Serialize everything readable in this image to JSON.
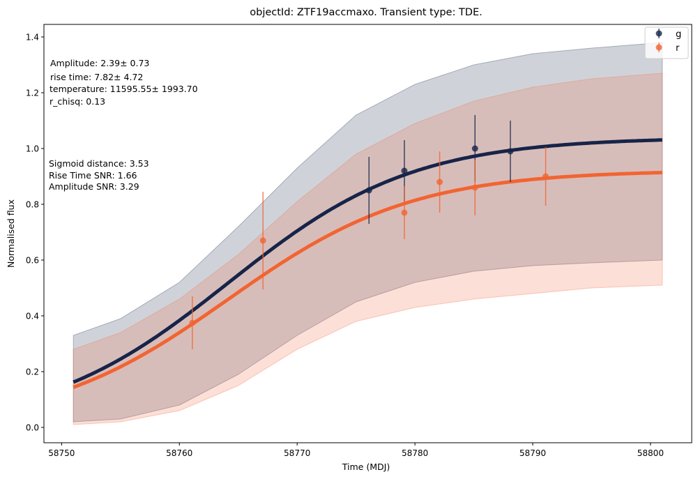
{
  "chart_data": {
    "type": "scatter",
    "title": "objectId: ZTF19accmaxo. Transient type: TDE.",
    "xlabel": "Time (MDJ)",
    "ylabel": "Normalised flux",
    "xlim": [
      58748.5,
      58803.5
    ],
    "ylim": [
      -0.055,
      1.445
    ],
    "xticks": [
      58750,
      58760,
      58770,
      58780,
      58790,
      58800
    ],
    "yticks": [
      0.0,
      0.2,
      0.4,
      0.6,
      0.8,
      1.0,
      1.2,
      1.4
    ],
    "grid": false,
    "legend_position": "top-right",
    "fit": {
      "x_range": [
        58751,
        58801
      ],
      "t0": 58764.2,
      "tau": 7.82
    },
    "series": [
      {
        "name": "g",
        "color": "#172449",
        "fill_color": "#2e3f5c",
        "amplitude": 1.04,
        "points": [
          {
            "x": 58776.1,
            "y": 0.85,
            "err": 0.12
          },
          {
            "x": 58779.1,
            "y": 0.92,
            "err": 0.11
          },
          {
            "x": 58785.1,
            "y": 1.0,
            "err": 0.12
          },
          {
            "x": 58788.1,
            "y": 0.99,
            "err": 0.11
          }
        ],
        "band": {
          "x": [
            58751,
            58755,
            58760,
            58765,
            58770,
            58775,
            58780,
            58785,
            58790,
            58795,
            58801
          ],
          "upper": [
            0.33,
            0.39,
            0.52,
            0.72,
            0.93,
            1.12,
            1.23,
            1.3,
            1.34,
            1.36,
            1.38
          ],
          "lower": [
            0.02,
            0.03,
            0.08,
            0.19,
            0.33,
            0.45,
            0.52,
            0.56,
            0.58,
            0.59,
            0.6
          ]
        }
      },
      {
        "name": "r",
        "color": "#f26432",
        "fill_color": "#f47650",
        "amplitude": 0.922,
        "points": [
          {
            "x": 58761.1,
            "y": 0.375,
            "err": 0.095
          },
          {
            "x": 58767.1,
            "y": 0.67,
            "err": 0.175
          },
          {
            "x": 58779.1,
            "y": 0.77,
            "err": 0.095
          },
          {
            "x": 58782.1,
            "y": 0.88,
            "err": 0.11
          },
          {
            "x": 58785.1,
            "y": 0.86,
            "err": 0.1
          },
          {
            "x": 58791.1,
            "y": 0.9,
            "err": 0.105
          }
        ],
        "band": {
          "x": [
            58751,
            58755,
            58760,
            58765,
            58770,
            58775,
            58780,
            58785,
            58790,
            58795,
            58801
          ],
          "upper": [
            0.28,
            0.34,
            0.46,
            0.62,
            0.81,
            0.98,
            1.09,
            1.17,
            1.22,
            1.25,
            1.27
          ],
          "lower": [
            0.01,
            0.02,
            0.06,
            0.15,
            0.28,
            0.38,
            0.43,
            0.46,
            0.48,
            0.5,
            0.51
          ]
        }
      }
    ]
  },
  "annotations": {
    "amplitude": "Amplitude: 2.39± 0.73",
    "rise_time": "rise time: 7.82± 4.72",
    "temperature": "temperature: 11595.55± 1993.70",
    "r_chisq": "r_chisq: 0.13",
    "sigmoid_distance": "Sigmoid distance: 3.53",
    "rise_time_snr": "Rise Time SNR: 1.66",
    "amplitude_snr": "Amplitude SNR: 3.29"
  }
}
